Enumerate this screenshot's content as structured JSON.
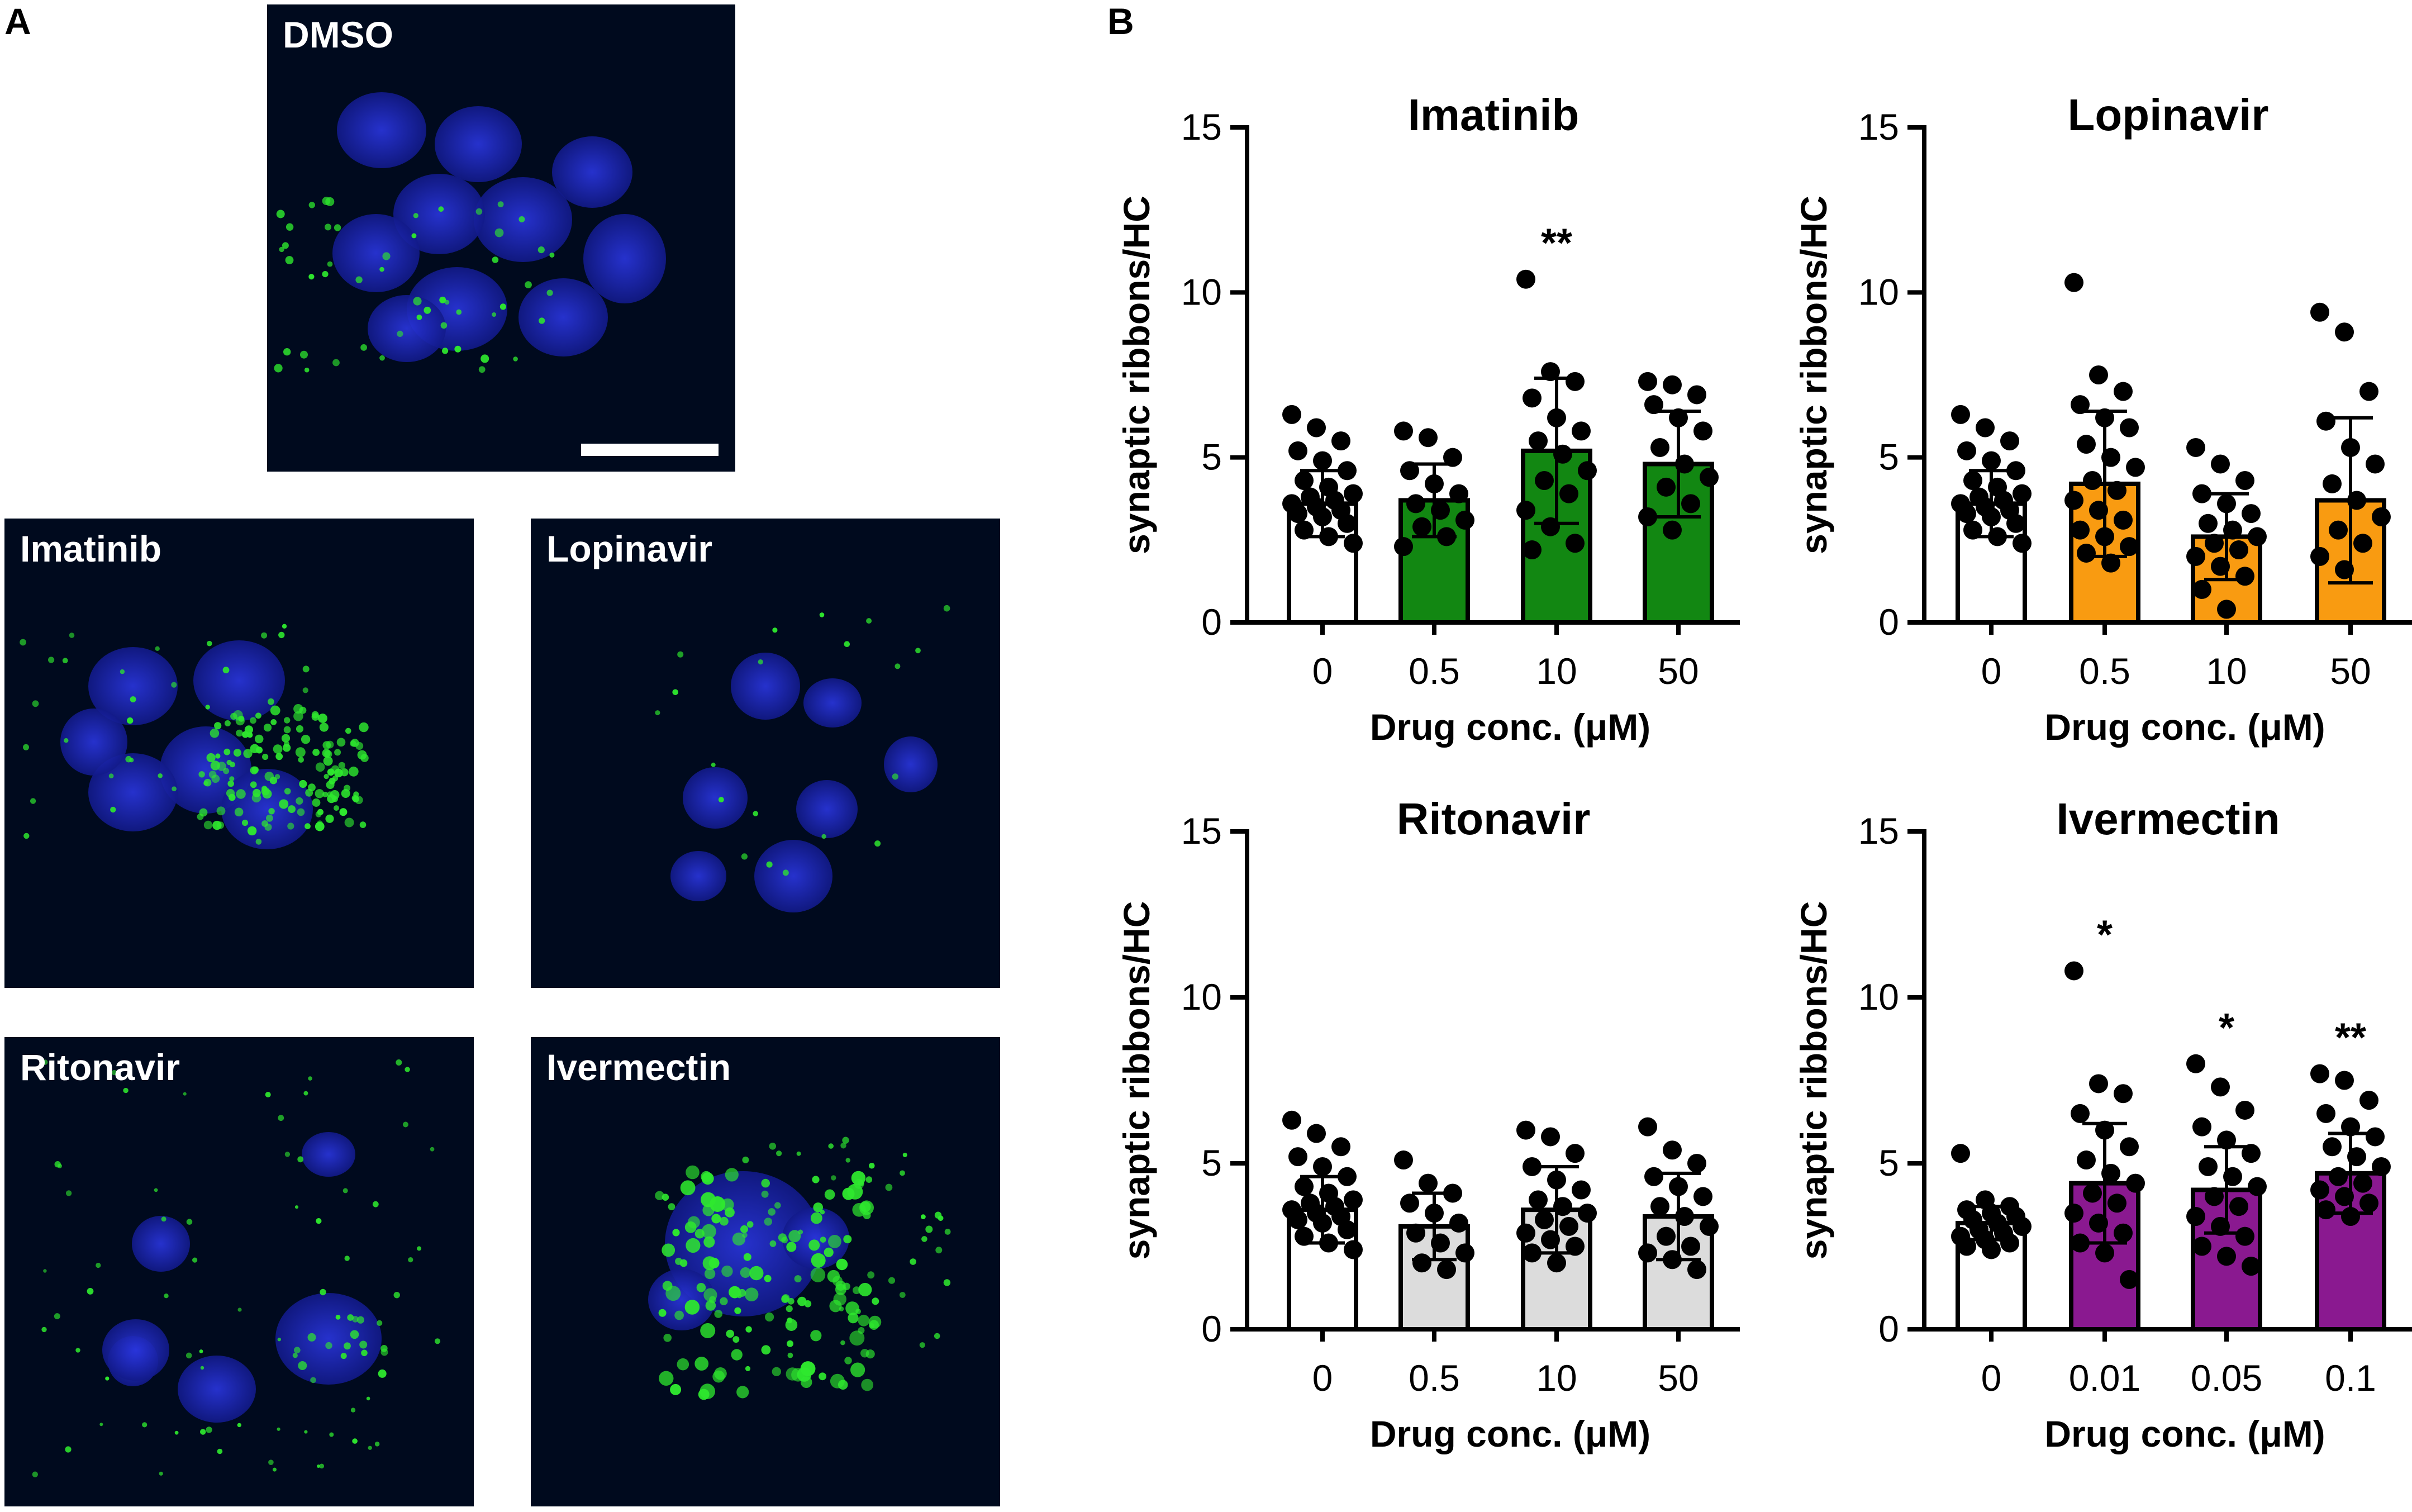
{
  "panels": {
    "a": "A",
    "b": "B"
  },
  "micrographs": [
    {
      "label": "DMSO",
      "type": "dmso"
    },
    {
      "label": "Imatinib",
      "type": "imatinib"
    },
    {
      "label": "Lopinavir",
      "type": "lopinavir"
    },
    {
      "label": "Ritonavir",
      "type": "ritonavir"
    },
    {
      "label": "Ivermectin",
      "type": "ivermectin"
    }
  ],
  "colors": {
    "imatinib": "#128712",
    "lopinavir": "#f99b11",
    "ritonavir": "#dcdcdc",
    "ivermectin": "#8a1990",
    "control": "#ffffff",
    "nucleus": "#2028b8",
    "ribbon": "#2ee82e",
    "background": "#000a1e"
  },
  "chart_data": [
    {
      "type": "bar",
      "title": "Imatinib",
      "xlabel": "Drug conc. (μM)",
      "ylabel": "synaptic ribbons/HC",
      "ylim": [
        0,
        15
      ],
      "yticks": [
        "0",
        "5",
        "10",
        "15"
      ],
      "categories": [
        "0",
        "0.5",
        "10",
        "50"
      ],
      "values": [
        3.6,
        3.7,
        5.2,
        4.8
      ],
      "sd": [
        1.0,
        1.1,
        2.2,
        1.6
      ],
      "significance": [
        "",
        "",
        "**",
        ""
      ],
      "bar_colors": [
        "#ffffff",
        "#128712",
        "#128712",
        "#128712"
      ],
      "points": [
        [
          6.3,
          5.9,
          5.5,
          5.2,
          4.9,
          4.6,
          4.3,
          4.1,
          3.9,
          3.8,
          3.7,
          3.6,
          3.5,
          3.4,
          3.3,
          3.2,
          3.0,
          2.8,
          2.6,
          2.4
        ],
        [
          5.8,
          5.6,
          5.0,
          4.6,
          4.2,
          3.9,
          3.6,
          3.4,
          3.1,
          2.9,
          2.6,
          2.3
        ],
        [
          10.4,
          7.6,
          7.3,
          6.8,
          6.2,
          5.8,
          5.5,
          5.1,
          4.6,
          4.3,
          3.9,
          3.4,
          2.9,
          2.4,
          2.2
        ],
        [
          7.3,
          7.2,
          6.9,
          6.6,
          6.2,
          5.8,
          5.3,
          4.8,
          4.4,
          4.1,
          3.6,
          3.2,
          2.8
        ]
      ]
    },
    {
      "type": "bar",
      "title": "Lopinavir",
      "xlabel": "Drug conc. (μM)",
      "ylabel": "synaptic ribbons/HC",
      "ylim": [
        0,
        15
      ],
      "yticks": [
        "0",
        "5",
        "10",
        "15"
      ],
      "categories": [
        "0",
        "0.5",
        "10",
        "50"
      ],
      "values": [
        3.6,
        4.2,
        2.6,
        3.7
      ],
      "sd": [
        1.0,
        2.2,
        1.3,
        2.5
      ],
      "significance": [
        "",
        "",
        "",
        ""
      ],
      "bar_colors": [
        "#ffffff",
        "#f99b11",
        "#f99b11",
        "#f99b11"
      ],
      "points": [
        [
          6.3,
          5.9,
          5.5,
          5.2,
          4.9,
          4.6,
          4.3,
          4.1,
          3.9,
          3.8,
          3.7,
          3.6,
          3.5,
          3.4,
          3.3,
          3.2,
          3.0,
          2.8,
          2.6,
          2.4
        ],
        [
          10.3,
          7.5,
          7.0,
          6.6,
          6.2,
          5.9,
          5.4,
          5.0,
          4.7,
          4.3,
          4.0,
          3.7,
          3.4,
          3.1,
          2.8,
          2.6,
          2.3,
          2.1,
          1.8
        ],
        [
          5.3,
          4.8,
          4.3,
          3.9,
          3.6,
          3.3,
          3.0,
          2.8,
          2.6,
          2.4,
          2.2,
          2.0,
          1.7,
          1.4,
          1.0,
          0.4
        ],
        [
          9.4,
          8.8,
          7.0,
          6.1,
          5.3,
          4.8,
          4.2,
          3.7,
          3.2,
          2.8,
          2.4,
          2.0,
          1.6
        ]
      ]
    },
    {
      "type": "bar",
      "title": "Ritonavir",
      "xlabel": "Drug conc. (μM)",
      "ylabel": "synaptic ribbons/HC",
      "ylim": [
        0,
        15
      ],
      "yticks": [
        "0",
        "5",
        "10",
        "15"
      ],
      "categories": [
        "0",
        "0.5",
        "10",
        "50"
      ],
      "values": [
        3.6,
        3.1,
        3.6,
        3.4
      ],
      "sd": [
        1.0,
        1.0,
        1.3,
        1.3
      ],
      "significance": [
        "",
        "",
        "",
        ""
      ],
      "bar_colors": [
        "#ffffff",
        "#dcdcdc",
        "#dcdcdc",
        "#dcdcdc"
      ],
      "points": [
        [
          6.3,
          5.9,
          5.5,
          5.2,
          4.9,
          4.6,
          4.3,
          4.1,
          3.9,
          3.8,
          3.7,
          3.6,
          3.5,
          3.4,
          3.3,
          3.2,
          3.0,
          2.8,
          2.6,
          2.4
        ],
        [
          5.1,
          4.4,
          4.1,
          3.8,
          3.5,
          3.2,
          2.9,
          2.6,
          2.3,
          2.0,
          1.8
        ],
        [
          6.0,
          5.8,
          5.3,
          4.9,
          4.5,
          4.2,
          3.9,
          3.7,
          3.5,
          3.3,
          3.1,
          2.9,
          2.7,
          2.5,
          2.3,
          2.0
        ],
        [
          6.1,
          5.4,
          5.0,
          4.6,
          4.3,
          4.0,
          3.7,
          3.4,
          3.1,
          2.8,
          2.5,
          2.3,
          2.1,
          1.8
        ]
      ]
    },
    {
      "type": "bar",
      "title": "Ivermectin",
      "xlabel": "Drug conc. (μM)",
      "ylabel": "synaptic ribbons/HC",
      "ylim": [
        0,
        15
      ],
      "yticks": [
        "0",
        "5",
        "10",
        "15"
      ],
      "categories": [
        "0",
        "0.01",
        "0.05",
        "0.1"
      ],
      "values": [
        3.2,
        4.4,
        4.2,
        4.7
      ],
      "sd": [
        0.5,
        1.8,
        1.3,
        1.2
      ],
      "significance": [
        "",
        "*",
        "*",
        "**"
      ],
      "bar_colors": [
        "#ffffff",
        "#8a1990",
        "#8a1990",
        "#8a1990"
      ],
      "points": [
        [
          5.3,
          3.9,
          3.7,
          3.6,
          3.5,
          3.4,
          3.3,
          3.2,
          3.1,
          3.0,
          2.9,
          2.8,
          2.7,
          2.6,
          2.5,
          2.4
        ],
        [
          10.8,
          7.4,
          7.1,
          6.5,
          6.0,
          5.5,
          5.1,
          4.7,
          4.4,
          4.1,
          3.8,
          3.5,
          3.2,
          2.9,
          2.6,
          2.3,
          1.5
        ],
        [
          8.0,
          7.3,
          6.6,
          6.1,
          5.7,
          5.3,
          4.9,
          4.6,
          4.3,
          4.0,
          3.7,
          3.4,
          3.1,
          2.8,
          2.5,
          2.2,
          1.9
        ],
        [
          7.7,
          7.5,
          6.9,
          6.5,
          6.1,
          5.8,
          5.5,
          5.2,
          4.9,
          4.6,
          4.4,
          4.2,
          4.0,
          3.8,
          3.6,
          3.4
        ]
      ]
    }
  ]
}
